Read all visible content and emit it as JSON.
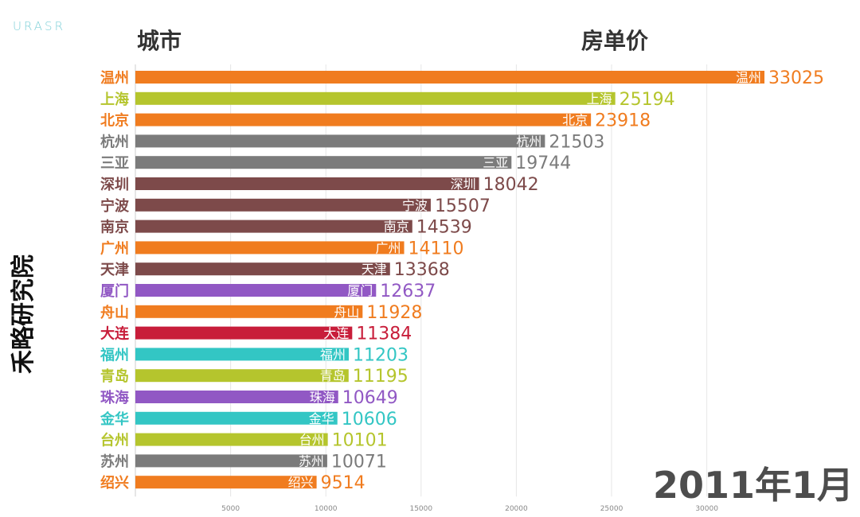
{
  "logo": "URASR",
  "headers": {
    "city": "城市",
    "price": "房单价"
  },
  "watermark": "禾略研究院",
  "date": "2011年1月",
  "colors": {
    "orange": "#f07c1f",
    "olive": "#b5c52d",
    "gray": "#7b7b7b",
    "brown": "#7d4a4a",
    "purple": "#9158c4",
    "red": "#c81d3a",
    "teal": "#33c6c4"
  },
  "chart_data": {
    "type": "bar",
    "orientation": "horizontal",
    "xlim": [
      0,
      33500
    ],
    "ticks": [
      5000,
      10000,
      15000,
      20000,
      25000,
      30000
    ],
    "categories": [
      "温州",
      "上海",
      "北京",
      "杭州",
      "三亚",
      "深圳",
      "宁波",
      "南京",
      "广州",
      "天津",
      "厦门",
      "舟山",
      "大连",
      "福州",
      "青岛",
      "珠海",
      "金华",
      "台州",
      "苏州",
      "绍兴"
    ],
    "values": [
      33025,
      25194,
      23918,
      21503,
      19744,
      18042,
      15507,
      14539,
      14110,
      13368,
      12637,
      11928,
      11384,
      11203,
      11195,
      10649,
      10606,
      10101,
      10071,
      9514
    ],
    "bar_colors": [
      "orange",
      "olive",
      "orange",
      "gray",
      "gray",
      "brown",
      "brown",
      "brown",
      "orange",
      "brown",
      "purple",
      "orange",
      "red",
      "teal",
      "olive",
      "purple",
      "teal",
      "olive",
      "gray",
      "orange"
    ]
  }
}
